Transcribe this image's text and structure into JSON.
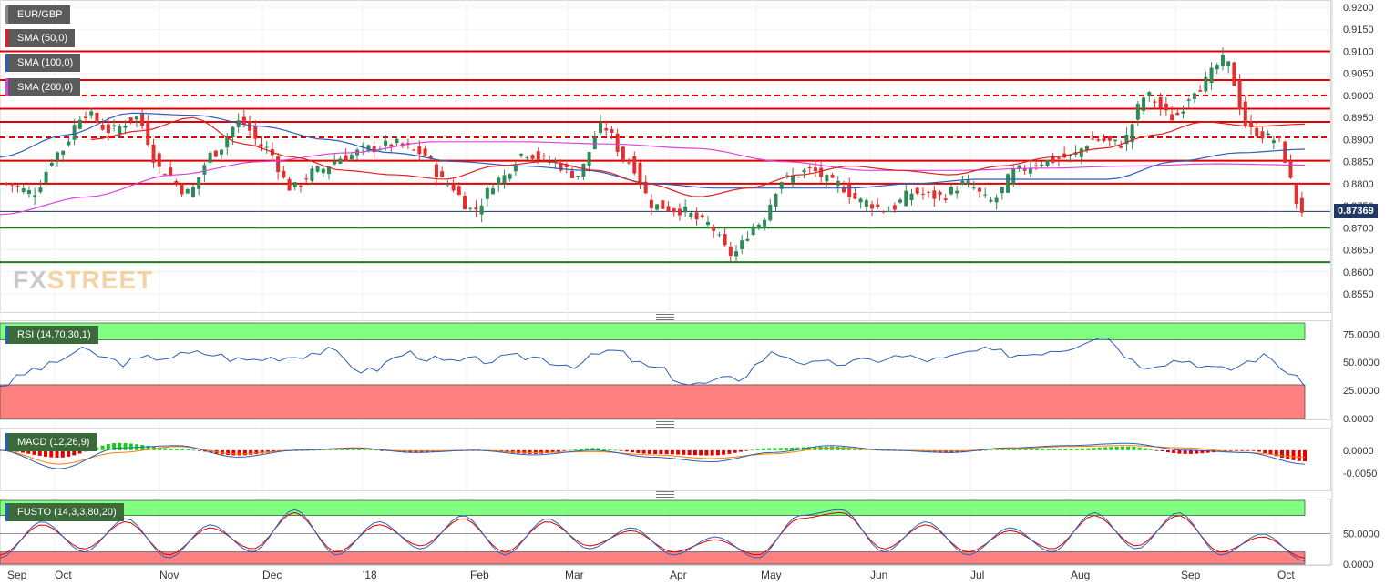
{
  "instrument": "EUR/GBP",
  "logo": {
    "part1": "FX",
    "part2": "STREET"
  },
  "last_price": "0.87369",
  "indicator_labels": {
    "sma50": "SMA (50,0)",
    "sma100": "SMA (100,0)",
    "sma200": "SMA (200,0)",
    "rsi": "RSI (14,70,30,1)",
    "macd": "MACD (12,26,9)",
    "fusto": "FUSTO (14,3,3,80,20)"
  },
  "colors": {
    "up": "#2e8b57",
    "down": "#e03030",
    "sma50": "#e02020",
    "sma100": "#2c5fb8",
    "sma200": "#e040e0",
    "level": "#e00000",
    "support": "#1e7b1e",
    "zone_green": "#80ff80",
    "zone_red": "#ff8080"
  },
  "price_axis": [
    "0.9200",
    "0.9150",
    "0.9100",
    "0.9050",
    "0.9000",
    "0.8950",
    "0.8900",
    "0.8850",
    "0.8800",
    "0.8750",
    "0.8700",
    "0.8650",
    "0.8600",
    "0.8550"
  ],
  "rsi_axis": [
    "75.0000",
    "50.0000",
    "25.0000",
    "0.0000"
  ],
  "macd_axis": [
    "0.0000",
    "-0.0050"
  ],
  "fusto_axis": [
    "50.0000",
    "0.0000"
  ],
  "time_axis": [
    "Sep",
    "Oct",
    "Nov",
    "Dec",
    "'18",
    "Feb",
    "Mar",
    "Apr",
    "May",
    "Jun",
    "Jul",
    "Aug",
    "Sep",
    "Oct"
  ],
  "chart_data": {
    "type": "line",
    "title": "EUR/GBP",
    "price_range": [
      0.8505,
      0.9205
    ],
    "horizontal_levels": [
      {
        "price": 0.91,
        "style": "solid",
        "color": "red"
      },
      {
        "price": 0.9035,
        "style": "solid",
        "color": "red"
      },
      {
        "price": 0.9,
        "style": "dashed",
        "color": "red"
      },
      {
        "price": 0.897,
        "style": "solid",
        "color": "red"
      },
      {
        "price": 0.894,
        "style": "solid",
        "color": "red"
      },
      {
        "price": 0.8905,
        "style": "dashed",
        "color": "red"
      },
      {
        "price": 0.8852,
        "style": "solid",
        "color": "red"
      },
      {
        "price": 0.88,
        "style": "solid",
        "color": "red"
      },
      {
        "price": 0.87,
        "style": "solid",
        "color": "green"
      },
      {
        "price": 0.8622,
        "style": "solid",
        "color": "green"
      }
    ],
    "price_series": {
      "name": "EUR/GBP",
      "x_fraction": [
        0.0,
        0.02,
        0.04,
        0.06,
        0.08,
        0.1,
        0.12,
        0.14,
        0.16,
        0.18,
        0.2,
        0.22,
        0.24,
        0.26,
        0.28,
        0.3,
        0.32,
        0.34,
        0.36,
        0.38,
        0.4,
        0.42,
        0.44,
        0.46,
        0.48,
        0.5,
        0.52,
        0.54,
        0.56,
        0.58,
        0.6,
        0.62,
        0.64,
        0.66,
        0.68,
        0.7,
        0.72,
        0.74,
        0.76,
        0.78,
        0.8,
        0.82,
        0.84,
        0.86,
        0.88,
        0.9,
        0.92,
        0.94,
        0.96,
        0.98,
        1.0
      ],
      "close": [
        0.88,
        0.878,
        0.887,
        0.896,
        0.892,
        0.895,
        0.883,
        0.878,
        0.887,
        0.894,
        0.888,
        0.879,
        0.883,
        0.886,
        0.888,
        0.889,
        0.887,
        0.88,
        0.874,
        0.881,
        0.887,
        0.885,
        0.882,
        0.893,
        0.885,
        0.875,
        0.874,
        0.871,
        0.864,
        0.871,
        0.881,
        0.883,
        0.88,
        0.876,
        0.874,
        0.878,
        0.877,
        0.88,
        0.876,
        0.883,
        0.885,
        0.886,
        0.89,
        0.889,
        0.9,
        0.895,
        0.902,
        0.908,
        0.892,
        0.89,
        0.874
      ]
    },
    "sma50": [
      0.89,
      0.892,
      0.895,
      0.889,
      0.886,
      0.883,
      0.882,
      0.881,
      0.884,
      0.885,
      0.883,
      0.88,
      0.877,
      0.879,
      0.882,
      0.884,
      0.883,
      0.882,
      0.884,
      0.886,
      0.888,
      0.891,
      0.894,
      0.893,
      0.8935
    ],
    "sma100": [
      0.886,
      0.891,
      0.896,
      0.8955,
      0.893,
      0.89,
      0.887,
      0.885,
      0.884,
      0.883,
      0.88,
      0.879,
      0.879,
      0.879,
      0.88,
      0.881,
      0.881,
      0.881,
      0.885,
      0.887,
      0.8878
    ],
    "sma200": [
      0.873,
      0.877,
      0.882,
      0.885,
      0.887,
      0.8895,
      0.8895,
      0.889,
      0.888,
      0.885,
      0.883,
      0.883,
      0.8835,
      0.884,
      0.8845,
      0.8842
    ],
    "rsi": {
      "values": [
        30,
        45,
        60,
        50,
        55,
        58,
        52,
        55,
        60,
        42,
        58,
        50,
        52,
        55,
        48,
        60,
        45,
        30,
        35,
        58,
        48,
        50,
        55,
        52,
        60,
        57,
        62,
        74,
        48,
        52,
        43,
        55,
        32
      ],
      "overbought": 70,
      "oversold": 30,
      "range": [
        0,
        85
      ]
    },
    "macd": {
      "macd": [
        0.0,
        -0.004,
        0.0005,
        0.001,
        -0.0015,
        0.0,
        0.0005,
        -0.0005,
        0.0,
        -0.001,
        0.0,
        -0.0015,
        -0.0025,
        -0.0005,
        0.001,
        0.0,
        -0.0005,
        0.0005,
        0.001,
        0.0015,
        0.0,
        -0.0005,
        -0.003
      ],
      "signal": [
        0.0,
        -0.003,
        -0.0005,
        0.0008,
        -0.0008,
        0.0,
        0.0003,
        -0.0002,
        0.0,
        -0.0005,
        -0.0003,
        -0.001,
        -0.0018,
        -0.0008,
        0.0005,
        0.0,
        -0.0002,
        0.0003,
        0.0008,
        0.001,
        0.0005,
        -0.0005,
        -0.0015
      ],
      "range": [
        -0.0085,
        0.0045
      ]
    },
    "fusto": {
      "k": [
        10,
        70,
        20,
        75,
        10,
        65,
        20,
        90,
        15,
        70,
        25,
        80,
        15,
        75,
        25,
        60,
        15,
        45,
        10,
        80,
        90,
        20,
        70,
        15,
        60,
        20,
        85,
        25,
        85,
        15,
        50,
        5
      ],
      "d": [
        15,
        65,
        25,
        70,
        15,
        60,
        25,
        85,
        20,
        65,
        30,
        75,
        20,
        70,
        30,
        55,
        20,
        40,
        15,
        75,
        85,
        25,
        65,
        20,
        55,
        25,
        80,
        30,
        80,
        20,
        45,
        10
      ],
      "overbought": 80,
      "oversold": 20,
      "range": [
        0,
        105
      ]
    }
  }
}
